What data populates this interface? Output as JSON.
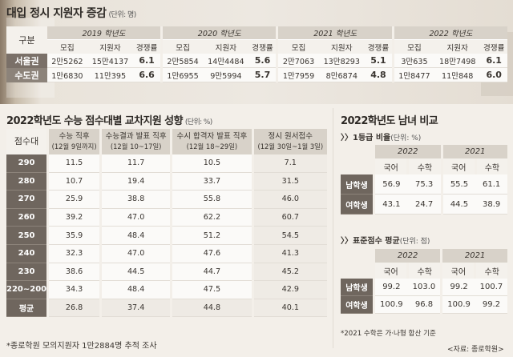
{
  "top": {
    "title": "대입 정시 지원자 증감",
    "unit": "(단위: 명)",
    "corner_label": "구분",
    "years": [
      {
        "label": "2019 학년도",
        "cols": [
          "모집",
          "지원자",
          "경쟁률"
        ]
      },
      {
        "label": "2020 학년도",
        "cols": [
          "모집",
          "지원자",
          "경쟁률"
        ]
      },
      {
        "label": "2021 학년도",
        "cols": [
          "모집",
          "지원자",
          "경쟁률"
        ]
      },
      {
        "label": "2022 학년도",
        "cols": [
          "모집",
          "지원자",
          "경쟁률"
        ]
      }
    ],
    "rows": [
      {
        "label": "서울권",
        "values": [
          "2만5262",
          "15만4137",
          "6.1",
          "2만5854",
          "14만4484",
          "5.6",
          "2만7063",
          "13만8293",
          "5.1",
          "3만635",
          "18만7498",
          "6.1"
        ]
      },
      {
        "label": "수도권",
        "values": [
          "1만6830",
          "11만395",
          "6.6",
          "1만6955",
          "9만5994",
          "5.7",
          "1만7959",
          "8만6874",
          "4.8",
          "1만8477",
          "11만848",
          "6.0"
        ]
      }
    ]
  },
  "left": {
    "title": "2022학년도 수능 점수대별 교차지원 성향",
    "unit": "(단위: %)",
    "corner_label": "점수대",
    "columns": [
      {
        "label": "수능 직후",
        "sub": "(12월 9일까지)"
      },
      {
        "label": "수능결과 발표 직후",
        "sub": "(12월 10~17일)"
      },
      {
        "label": "수시 합격자 발표 직후",
        "sub": "(12월 18~29일)"
      },
      {
        "label": "정시 원서접수",
        "sub": "(12월 30일~1월 3일)"
      }
    ],
    "rows": [
      {
        "label": "290",
        "values": [
          "11.5",
          "11.7",
          "10.5",
          "7.1"
        ]
      },
      {
        "label": "280",
        "values": [
          "10.7",
          "19.4",
          "33.7",
          "31.5"
        ]
      },
      {
        "label": "270",
        "values": [
          "25.9",
          "38.8",
          "55.8",
          "46.0"
        ]
      },
      {
        "label": "260",
        "values": [
          "39.2",
          "47.0",
          "62.2",
          "60.7"
        ]
      },
      {
        "label": "250",
        "values": [
          "35.9",
          "48.4",
          "51.2",
          "54.5"
        ]
      },
      {
        "label": "240",
        "values": [
          "32.3",
          "47.0",
          "47.6",
          "41.3"
        ]
      },
      {
        "label": "230",
        "values": [
          "38.6",
          "44.5",
          "44.7",
          "45.2"
        ]
      },
      {
        "label": "220~200",
        "values": [
          "34.3",
          "48.4",
          "47.5",
          "42.9"
        ]
      },
      {
        "label": "평균",
        "values": [
          "26.8",
          "37.4",
          "44.8",
          "40.1"
        ]
      }
    ],
    "footnote": "*종로학원 모의지원자 1만2884명 추적 조사"
  },
  "right": {
    "title": "2022학년도 남녀 비교",
    "ratio": {
      "heading": "〉〉1등급 비율",
      "unit": "(단위: %)",
      "years": [
        "2022",
        "2021"
      ],
      "subjects": [
        "국어",
        "수학",
        "국어",
        "수학"
      ],
      "rows": [
        {
          "label": "남학생",
          "values": [
            "56.9",
            "75.3",
            "55.5",
            "61.1"
          ]
        },
        {
          "label": "여학생",
          "values": [
            "43.1",
            "24.7",
            "44.5",
            "38.9"
          ]
        }
      ]
    },
    "score": {
      "heading": "〉〉표준점수 평균",
      "unit": "(단위: 점)",
      "years": [
        "2022",
        "2021"
      ],
      "subjects": [
        "국어",
        "수학",
        "국어",
        "수학"
      ],
      "rows": [
        {
          "label": "남학생",
          "values": [
            "99.2",
            "103.0",
            "99.2",
            "100.7"
          ]
        },
        {
          "label": "여학생",
          "values": [
            "100.9",
            "96.8",
            "100.9",
            "99.2"
          ]
        }
      ]
    },
    "note": "*2021 수학은 가·나형 합산 기준",
    "source": "<자료: 종로학원>"
  }
}
